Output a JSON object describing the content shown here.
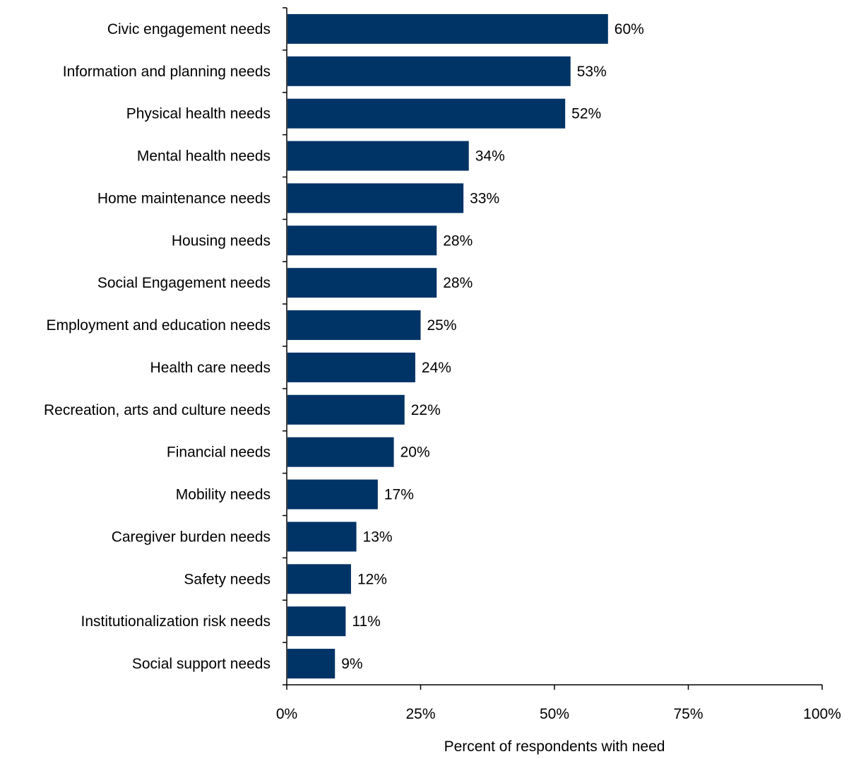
{
  "chart_data": {
    "type": "bar",
    "orientation": "horizontal",
    "categories": [
      "Civic engagement needs",
      "Information and planning needs",
      "Physical health needs",
      "Mental health needs",
      "Home maintenance needs",
      "Housing needs",
      "Social Engagement needs",
      "Employment and education needs",
      "Health care needs",
      "Recreation, arts and culture needs",
      "Financial needs",
      "Mobility needs",
      "Caregiver burden needs",
      "Safety needs",
      "Institutionalization risk needs",
      "Social support needs"
    ],
    "values": [
      60,
      53,
      52,
      34,
      33,
      28,
      28,
      25,
      24,
      22,
      20,
      17,
      13,
      12,
      11,
      9
    ],
    "data_labels": [
      "60%",
      "53%",
      "52%",
      "34%",
      "33%",
      "28%",
      "28%",
      "25%",
      "24%",
      "22%",
      "20%",
      "17%",
      "13%",
      "12%",
      "11%",
      "9%"
    ],
    "x_ticks": [
      0,
      25,
      50,
      75,
      100
    ],
    "x_tick_labels": [
      "0%",
      "25%",
      "50%",
      "75%",
      "100%"
    ],
    "xlim": [
      0,
      100
    ],
    "xlabel": "Percent of respondents with need",
    "ylabel": "",
    "title": "",
    "grid": false,
    "legend": "none",
    "bar_color": "#003366"
  }
}
